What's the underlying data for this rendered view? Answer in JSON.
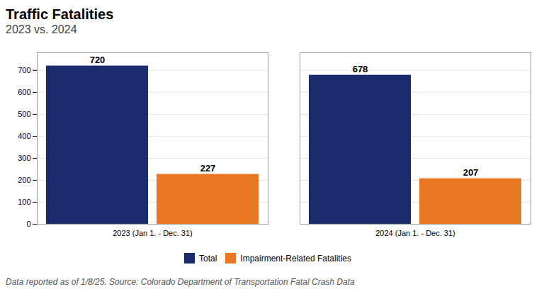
{
  "chart_data": {
    "type": "bar",
    "title": "Traffic Fatalities",
    "subtitle": "2023 vs. 2024",
    "caption": "Data reported as of 1/8/25. Source: Colorado Department of Transportation Fatal Crash Data",
    "categories": [
      "2023 (Jan 1. - Dec. 31)",
      "2024 (Jan 1. - Dec. 31)"
    ],
    "series": [
      {
        "name": "Total",
        "color": "#1a2b6b",
        "values": [
          720,
          678
        ]
      },
      {
        "name": "Impairment-Related Fatalities",
        "color": "#e87722",
        "values": [
          227,
          207
        ]
      }
    ],
    "ylim": [
      0,
      780
    ],
    "yticks": [
      0,
      100,
      200,
      300,
      400,
      500,
      600,
      700
    ],
    "grid": true,
    "legend": "bottom",
    "data_labels": true
  }
}
